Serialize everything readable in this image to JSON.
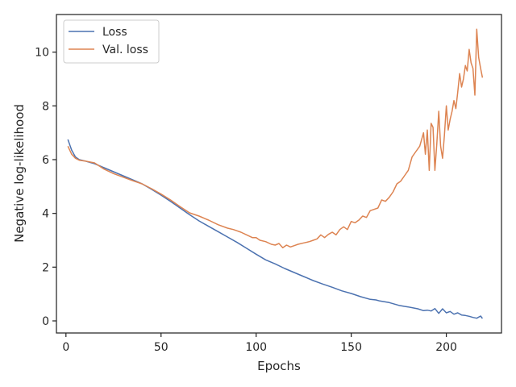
{
  "chart_data": {
    "type": "line",
    "title": "",
    "xlabel": "Epochs",
    "ylabel": "Negative log-likelihood",
    "xlim": [
      -5,
      229
    ],
    "ylim": [
      -0.45,
      11.4
    ],
    "xticks": [
      0,
      50,
      100,
      150,
      200
    ],
    "yticks": [
      0,
      2,
      4,
      6,
      8,
      10
    ],
    "grid": false,
    "legend_position": "top-left",
    "series": [
      {
        "name": "Loss",
        "color": "#4c72b0",
        "x": [
          1,
          3,
          5,
          7,
          10,
          15,
          20,
          25,
          30,
          35,
          40,
          45,
          50,
          55,
          60,
          65,
          70,
          75,
          80,
          85,
          90,
          95,
          100,
          105,
          108,
          110,
          115,
          120,
          125,
          130,
          135,
          140,
          145,
          150,
          155,
          160,
          163,
          165,
          170,
          175,
          178,
          180,
          185,
          188,
          190,
          192,
          194,
          196,
          198,
          200,
          202,
          204,
          206,
          208,
          210,
          212,
          214,
          216,
          218,
          219
        ],
        "y": [
          6.75,
          6.35,
          6.1,
          6.0,
          5.95,
          5.85,
          5.7,
          5.55,
          5.4,
          5.25,
          5.1,
          4.9,
          4.68,
          4.45,
          4.2,
          3.95,
          3.72,
          3.52,
          3.32,
          3.12,
          2.92,
          2.7,
          2.48,
          2.27,
          2.18,
          2.12,
          1.95,
          1.8,
          1.65,
          1.5,
          1.37,
          1.25,
          1.12,
          1.02,
          0.9,
          0.8,
          0.78,
          0.74,
          0.68,
          0.58,
          0.54,
          0.52,
          0.45,
          0.38,
          0.4,
          0.37,
          0.46,
          0.28,
          0.45,
          0.3,
          0.35,
          0.25,
          0.3,
          0.22,
          0.2,
          0.17,
          0.13,
          0.1,
          0.18,
          0.09
        ]
      },
      {
        "name": "Val. loss",
        "color": "#dd8452",
        "x": [
          1,
          3,
          5,
          7,
          10,
          15,
          20,
          25,
          30,
          35,
          40,
          45,
          50,
          55,
          60,
          65,
          70,
          75,
          80,
          85,
          88,
          90,
          92,
          95,
          98,
          100,
          102,
          105,
          108,
          110,
          112,
          114,
          116,
          118,
          120,
          122,
          125,
          128,
          130,
          132,
          134,
          136,
          138,
          140,
          142,
          144,
          146,
          148,
          150,
          152,
          154,
          156,
          158,
          160,
          162,
          164,
          166,
          168,
          170,
          172,
          174,
          176,
          178,
          180,
          182,
          184,
          186,
          188,
          189,
          190,
          191,
          192,
          193,
          194,
          195,
          196,
          197,
          198,
          199,
          200,
          201,
          202,
          203,
          204,
          205,
          206,
          207,
          208,
          209,
          210,
          211,
          212,
          213,
          214,
          215,
          216,
          217,
          218,
          219
        ],
        "y": [
          6.5,
          6.2,
          6.05,
          5.98,
          5.95,
          5.88,
          5.65,
          5.48,
          5.35,
          5.22,
          5.1,
          4.92,
          4.72,
          4.5,
          4.25,
          4.02,
          3.9,
          3.75,
          3.58,
          3.45,
          3.4,
          3.35,
          3.3,
          3.2,
          3.1,
          3.1,
          3.0,
          2.95,
          2.85,
          2.82,
          2.88,
          2.72,
          2.82,
          2.75,
          2.8,
          2.85,
          2.9,
          2.95,
          3.0,
          3.05,
          3.2,
          3.1,
          3.22,
          3.3,
          3.2,
          3.4,
          3.5,
          3.4,
          3.7,
          3.65,
          3.75,
          3.9,
          3.85,
          4.1,
          4.15,
          4.2,
          4.5,
          4.45,
          4.6,
          4.8,
          5.1,
          5.2,
          5.4,
          5.6,
          6.1,
          6.3,
          6.5,
          7.0,
          6.2,
          7.1,
          5.6,
          7.35,
          7.2,
          5.6,
          6.6,
          7.8,
          6.5,
          6.05,
          6.9,
          8.0,
          7.1,
          7.5,
          7.8,
          8.2,
          7.9,
          8.5,
          9.2,
          8.7,
          9.0,
          9.5,
          9.3,
          10.1,
          9.6,
          9.4,
          8.4,
          10.85,
          9.8,
          9.4,
          9.05
        ]
      }
    ]
  }
}
